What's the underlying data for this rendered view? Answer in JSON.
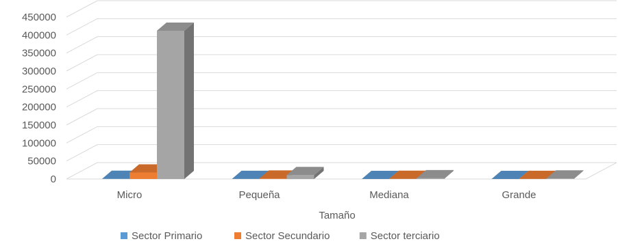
{
  "chart_data": {
    "type": "bar",
    "style": "3d-clustered-column",
    "categories": [
      "Micro",
      "Pequeña",
      "Mediana",
      "Grande"
    ],
    "series": [
      {
        "name": "Sector Primario",
        "color": "#5B9BD5",
        "values": [
          400,
          150,
          60,
          30
        ]
      },
      {
        "name": "Sector Secundario",
        "color": "#ED7D31",
        "values": [
          18000,
          1200,
          400,
          250
        ]
      },
      {
        "name": "Sector terciario",
        "color": "#A5A5A5",
        "values": [
          412000,
          11000,
          2200,
          1500
        ]
      }
    ],
    "xlabel": "Tamaño",
    "ylabel": "",
    "ylim": [
      0,
      450000
    ],
    "yticks": [
      0,
      50000,
      100000,
      150000,
      200000,
      250000,
      300000,
      350000,
      400000,
      450000
    ],
    "grid": true,
    "legend_position": "bottom"
  }
}
